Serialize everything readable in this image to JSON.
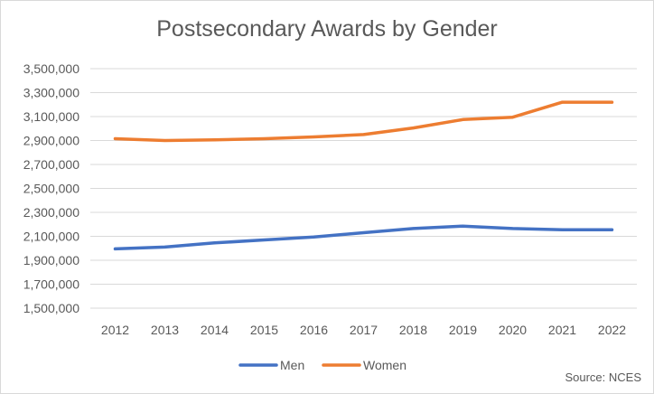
{
  "chart_data": {
    "type": "line",
    "title": "Postsecondary Awards by Gender",
    "source": "Source: NCES",
    "categories": [
      "2012",
      "2013",
      "2014",
      "2015",
      "2016",
      "2017",
      "2018",
      "2019",
      "2020",
      "2021",
      "2022"
    ],
    "series": [
      {
        "name": "Men",
        "color": "#4472c4",
        "values": [
          1995000,
          2010000,
          2045000,
          2070000,
          2095000,
          2130000,
          2165000,
          2185000,
          2165000,
          2155000,
          2155000
        ]
      },
      {
        "name": "Women",
        "color": "#ed7d31",
        "values": [
          2915000,
          2900000,
          2905000,
          2915000,
          2930000,
          2950000,
          3005000,
          3075000,
          3095000,
          3220000,
          3220000
        ]
      }
    ],
    "ylim": [
      1500000,
      3500000
    ],
    "yticks": [
      "1,500,000",
      "1,700,000",
      "1,900,000",
      "2,100,000",
      "2,300,000",
      "2,500,000",
      "2,700,000",
      "2,900,000",
      "3,100,000",
      "3,300,000",
      "3,500,000"
    ],
    "ytick_values": [
      1500000,
      1700000,
      1900000,
      2100000,
      2300000,
      2500000,
      2700000,
      2900000,
      3100000,
      3300000,
      3500000
    ],
    "grid": true,
    "legend_position": "bottom"
  }
}
